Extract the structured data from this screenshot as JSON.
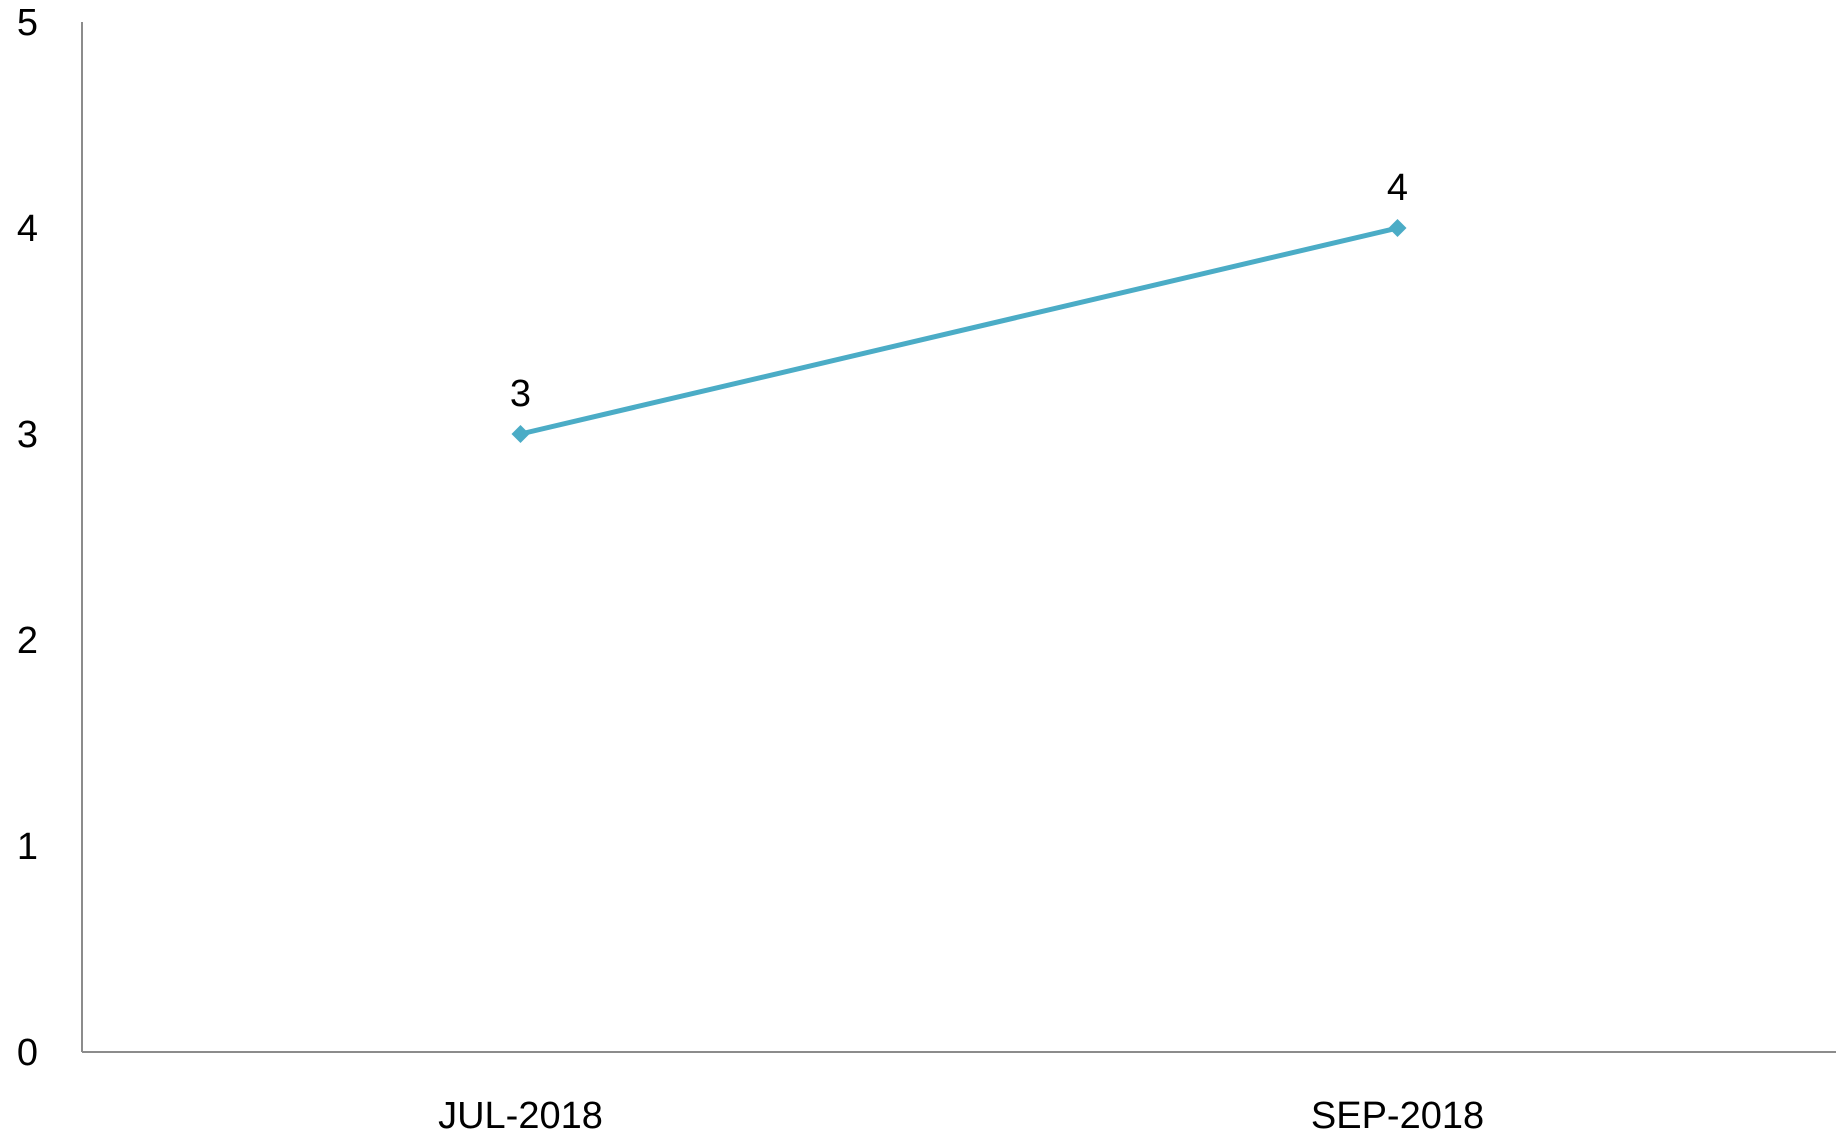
{
  "chart_data": {
    "type": "line",
    "title": "",
    "xlabel": "",
    "ylabel": "",
    "categories": [
      "JUL-2018",
      "SEP-2018"
    ],
    "series": [
      {
        "values": [
          3,
          4
        ],
        "color": "#4bacc6",
        "marker": "diamond",
        "data_labels": [
          "3",
          "4"
        ]
      }
    ],
    "ylim": [
      0,
      5
    ],
    "yticks": [
      0,
      1,
      2,
      3,
      4,
      5
    ],
    "ytick_labels": [
      "0",
      "1",
      "2",
      "3",
      "4",
      "5"
    ],
    "grid": false,
    "legend": "none",
    "axis_color": "#8c8c8c"
  }
}
